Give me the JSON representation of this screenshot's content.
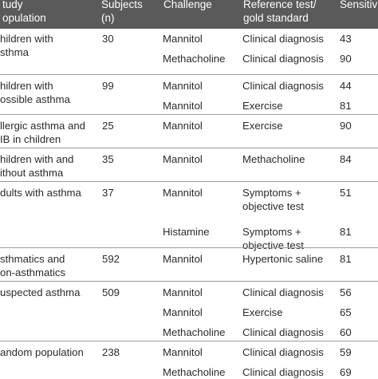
{
  "columns": {
    "study_population": [
      "tudy",
      "opulation"
    ],
    "subjects": [
      "Subjects",
      "(n)"
    ],
    "challenge": [
      "Challenge"
    ],
    "reference": [
      "Reference test/",
      "gold standard"
    ],
    "sensitivity": [
      "Sensitiv"
    ]
  },
  "groups": [
    {
      "population": [
        "hildren with",
        "sthma"
      ],
      "subjects": "30",
      "rows": [
        {
          "challenge": "Mannitol",
          "reference": [
            "Clinical diagnosis"
          ],
          "sensitivity": "43"
        },
        {
          "challenge": "Methacholine",
          "reference": [
            "Clinical diagnosis"
          ],
          "sensitivity": "90"
        }
      ]
    },
    {
      "population": [
        "hildren with",
        "ossible asthma"
      ],
      "subjects": "99",
      "rows": [
        {
          "challenge": "Mannitol",
          "reference": [
            "Clinical diagnosis"
          ],
          "sensitivity": "44"
        },
        {
          "challenge": "Mannitol",
          "reference": [
            "Exercise"
          ],
          "sensitivity": "81"
        }
      ]
    },
    {
      "population": [
        "llergic asthma and",
        "IB in children"
      ],
      "subjects": "25",
      "rows": [
        {
          "challenge": "Mannitol",
          "reference": [
            "Exercise"
          ],
          "sensitivity": "90"
        }
      ]
    },
    {
      "population": [
        "hildren with and",
        "ithout asthma"
      ],
      "subjects": "35",
      "rows": [
        {
          "challenge": "Mannitol",
          "reference": [
            "Methacholine"
          ],
          "sensitivity": "84"
        }
      ]
    },
    {
      "population": [
        "dults with asthma"
      ],
      "subjects": "37",
      "rows": [
        {
          "challenge": "Mannitol",
          "reference": [
            "Symptoms +",
            "objective test"
          ],
          "sensitivity": "51"
        },
        {
          "challenge": "Histamine",
          "reference": [
            "Symptoms +",
            "objective test"
          ],
          "sensitivity": "81"
        }
      ]
    },
    {
      "population": [
        "sthmatics and",
        "on-asthmatics"
      ],
      "subjects": "592",
      "rows": [
        {
          "challenge": "Mannitol",
          "reference": [
            "Hypertonic saline"
          ],
          "sensitivity": "81"
        }
      ]
    },
    {
      "population": [
        "uspected asthma"
      ],
      "subjects": "509",
      "rows": [
        {
          "challenge": "Mannitol",
          "reference": [
            "Clinical diagnosis"
          ],
          "sensitivity": "56"
        },
        {
          "challenge": "Mannitol",
          "reference": [
            "Exercise"
          ],
          "sensitivity": "65"
        },
        {
          "challenge": "Methacholine",
          "reference": [
            "Clinical diagnosis"
          ],
          "sensitivity": "60"
        }
      ]
    },
    {
      "population": [
        "andom population"
      ],
      "subjects": "238",
      "rows": [
        {
          "challenge": "Mannitol",
          "reference": [
            "Clinical diagnosis"
          ],
          "sensitivity": "59"
        },
        {
          "challenge": "Methacholine",
          "reference": [
            "Clinical diagnosis"
          ],
          "sensitivity": "69"
        }
      ]
    }
  ]
}
